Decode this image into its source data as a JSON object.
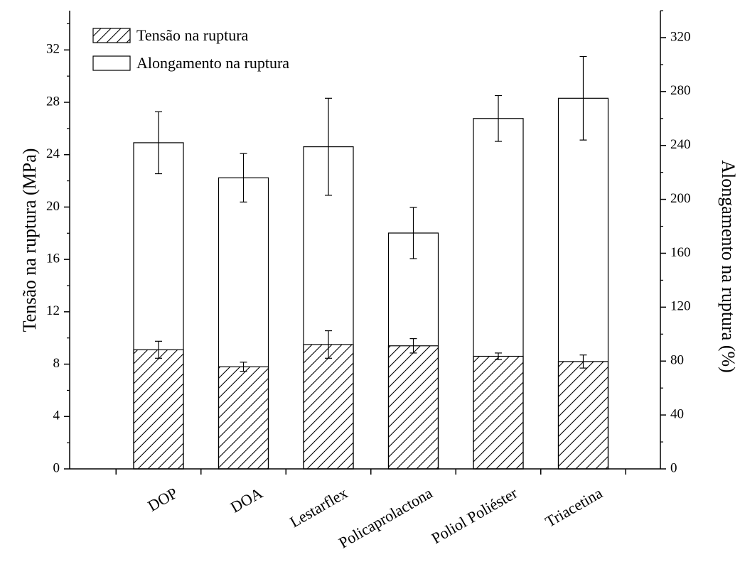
{
  "chart_data": {
    "type": "bar",
    "categories": [
      "DOP",
      "DOA",
      "Lestarflex",
      "Policaprolactona",
      "Poliol Poliéster",
      "Triacetina"
    ],
    "series": [
      {
        "name": "Tensão na ruptura",
        "axis": "left",
        "fill": "hatched",
        "values": [
          9.1,
          7.8,
          9.5,
          9.4,
          8.6,
          8.2
        ],
        "errors": [
          0.65,
          0.35,
          1.05,
          0.55,
          0.25,
          0.5
        ]
      },
      {
        "name": "Alongamento na ruptura",
        "axis": "right",
        "fill": "white",
        "values": [
          242,
          216,
          239,
          175,
          260,
          275
        ],
        "errors": [
          23,
          18,
          36,
          19,
          17,
          31
        ]
      }
    ],
    "ylabel": "Tensão na ruptura (MPa)",
    "y2label": "Alongamento na ruptura (%)",
    "ylim": [
      0,
      35
    ],
    "y2lim": [
      0,
      340
    ],
    "yticks": [
      0,
      4,
      8,
      12,
      16,
      20,
      24,
      28,
      32
    ],
    "y2ticks": [
      0,
      40,
      80,
      120,
      160,
      200,
      240,
      280,
      320
    ],
    "legend_position": "top-left",
    "grid": false,
    "colors": {
      "stroke": "#000000",
      "fill": "#ffffff"
    }
  }
}
